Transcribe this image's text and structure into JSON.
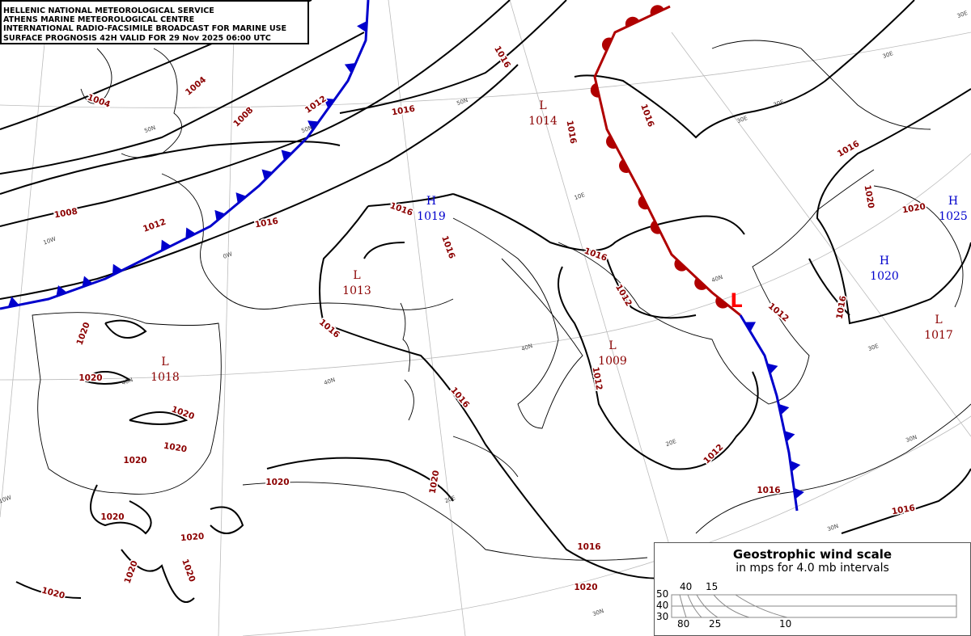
{
  "header": {
    "lines": [
      "HELLENIC NATIONAL METEOROLOGICAL SERVICE",
      "ATHENS MARINE METEOROLOGICAL CENTRE",
      "INTERNATIONAL RADIO-FACSIMILE BROADCAST FOR MARINE USE",
      "SURFACE PROGNOSIS 42H VALID FOR 29 Nov 2025 06:00 UTC"
    ]
  },
  "colors": {
    "isobar_label": "#8b0000",
    "high": "#0000cc",
    "low": "#8b0000",
    "cold_front": "#0000cc",
    "warm_front": "#b00000",
    "new_low": "#ff0000"
  },
  "pressure_centers": [
    {
      "type": "H",
      "value": "1019"
    },
    {
      "type": "L",
      "value": "1014"
    },
    {
      "type": "L",
      "value": "1013"
    },
    {
      "type": "L",
      "value": "1018"
    },
    {
      "type": "L",
      "value": "1009"
    },
    {
      "type": "H",
      "value": "1025"
    },
    {
      "type": "H",
      "value": "1020"
    },
    {
      "type": "L",
      "value": "1017"
    },
    {
      "type": "L",
      "value": ""
    }
  ],
  "isobar_labels": [
    "1004",
    "1004",
    "1008",
    "1008",
    "1012",
    "1012",
    "1016",
    "1016",
    "1016",
    "1016",
    "1016",
    "1016",
    "1016",
    "1016",
    "1016",
    "1016",
    "1016",
    "1016",
    "1016",
    "1016",
    "1016",
    "1012",
    "1012",
    "1012",
    "1012",
    "1020",
    "1020",
    "1020",
    "1020",
    "1020",
    "1020",
    "1020",
    "1020",
    "1020",
    "1020",
    "1020",
    "1020",
    "1020",
    "1020",
    "1020"
  ],
  "graticule_labels": [
    "50N",
    "50N",
    "50N",
    "40N",
    "40N",
    "40N",
    "40N",
    "30N",
    "30N",
    "30N",
    "10W",
    "10W",
    "0W",
    "10E",
    "20E",
    "20E",
    "30E",
    "30E",
    "30E",
    "30E",
    "30E"
  ],
  "wind_scale": {
    "title": "Geostrophic wind scale",
    "subtitle": "in mps for 4.0 mb intervals",
    "lat_labels": [
      "50",
      "40",
      "30"
    ],
    "top_speeds": [
      "40",
      "15"
    ],
    "bottom_speeds": [
      "80",
      "25",
      "10"
    ]
  }
}
